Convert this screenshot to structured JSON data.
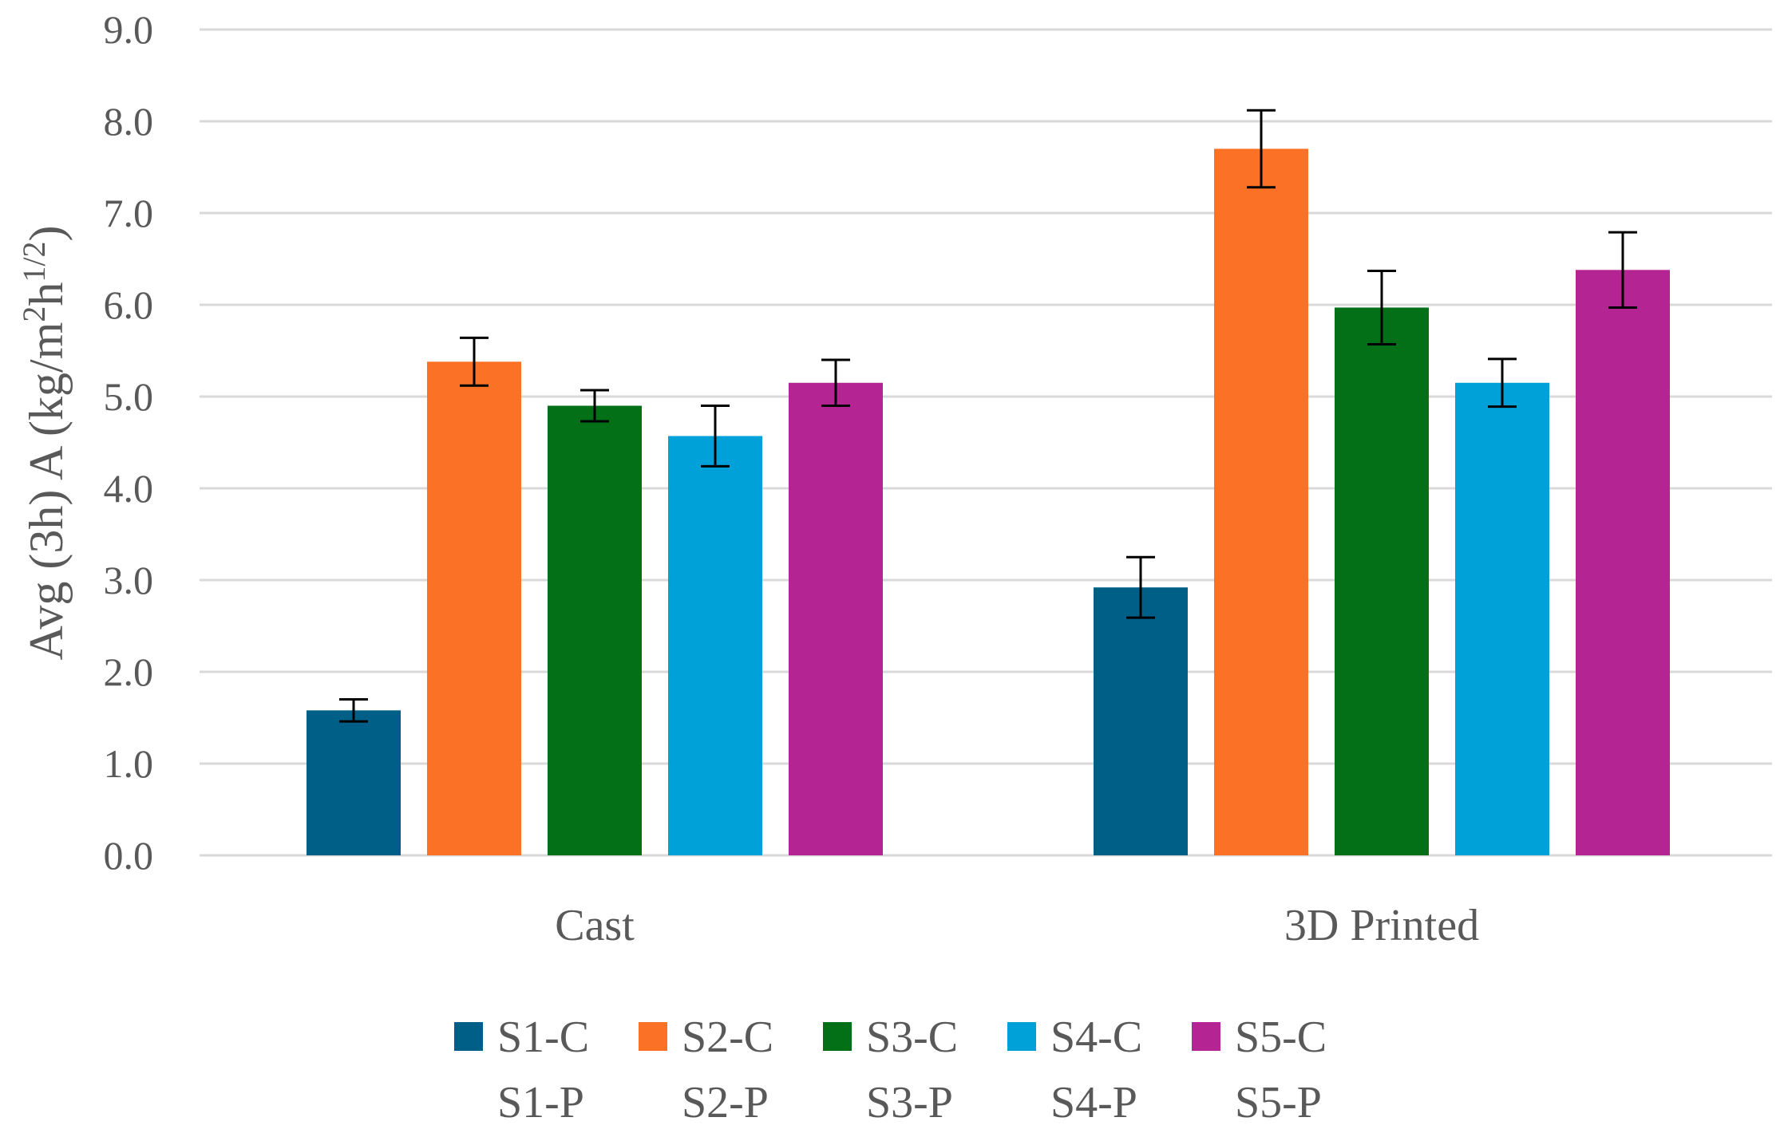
{
  "chart_data": {
    "type": "bar",
    "title": "",
    "xlabel": "",
    "ylabel": "Avg (3h) A (kg/m2h1/2)",
    "ylabel_parts": {
      "pre": "Avg (3h) A (kg/m",
      "sup1": "2",
      "mid": "h",
      "sup2": "1/2",
      "post": ")"
    },
    "ylim": [
      0,
      9
    ],
    "yticks": [
      "0.0",
      "1.0",
      "2.0",
      "3.0",
      "4.0",
      "5.0",
      "6.0",
      "7.0",
      "8.0",
      "9.0"
    ],
    "grid": true,
    "legend_position": "bottom",
    "categories": [
      "Cast",
      "3D Printed"
    ],
    "series": [
      {
        "name": "S1-C",
        "name2": "S1-P",
        "color": "#005f86",
        "values": [
          1.58,
          2.92
        ],
        "errors": [
          0.12,
          0.33
        ]
      },
      {
        "name": "S2-C",
        "name2": "S2-P",
        "color": "#fb7227",
        "values": [
          5.38,
          7.7
        ],
        "errors": [
          0.26,
          0.42
        ]
      },
      {
        "name": "S3-C",
        "name2": "S3-P",
        "color": "#037018",
        "values": [
          4.9,
          5.97
        ],
        "errors": [
          0.17,
          0.4
        ]
      },
      {
        "name": "S4-C",
        "name2": "S4-P",
        "color": "#00a1d8",
        "values": [
          4.57,
          5.15
        ],
        "errors": [
          0.33,
          0.26
        ]
      },
      {
        "name": "S5-C",
        "name2": "S5-P",
        "color": "#b42492",
        "values": [
          5.15,
          6.38
        ],
        "errors": [
          0.25,
          0.41
        ]
      }
    ]
  }
}
